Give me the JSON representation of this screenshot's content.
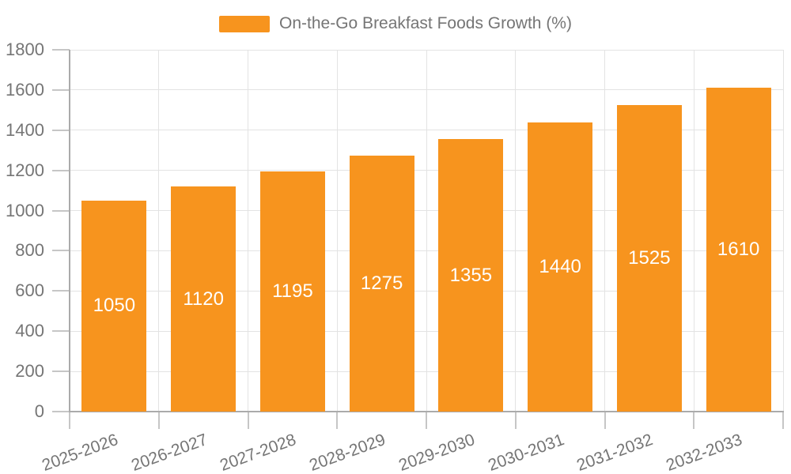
{
  "legend": {
    "label": "On-the-Go Breakfast Foods Growth (%)"
  },
  "chart_data": {
    "type": "bar",
    "title": "",
    "xlabel": "",
    "ylabel": "",
    "legend_position": "top",
    "grid": true,
    "categories": [
      "2025-2026",
      "2026-2027",
      "2027-2028",
      "2028-2029",
      "2029-2030",
      "2030-2031",
      "2031-2032",
      "2032-2033"
    ],
    "series": [
      {
        "name": "On-the-Go Breakfast Foods Growth (%)",
        "values": [
          1050,
          1120,
          1195,
          1275,
          1355,
          1440,
          1525,
          1610
        ]
      }
    ],
    "value_labels_shown": true,
    "ylim": [
      0,
      1800
    ],
    "yticks": [
      0,
      200,
      400,
      600,
      800,
      1000,
      1200,
      1400,
      1600,
      1800
    ],
    "x_label_rotation_deg": -20,
    "colors": {
      "bar": "#F7941E",
      "value_label": "#FFFFFF",
      "axis_label": "#757575",
      "axis_line": "#ABABAB",
      "tick": "#C6C6C6",
      "gridline": "#E3E3E3",
      "background": "#FFFFFF"
    }
  }
}
